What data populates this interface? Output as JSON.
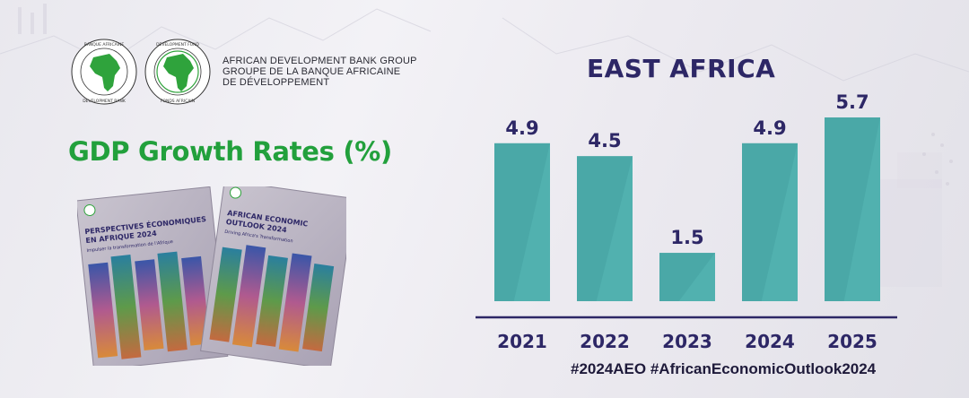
{
  "organization": {
    "emblem_left_ring": "BANQUE AFRICAINE DE DÉVELOPPEMENT • AFRICAN DEVELOPMENT BANK",
    "emblem_right_ring": "AFRICAN DEVELOPMENT FUND • FONDS AFRICAIN DE DÉVELOPPEMENT",
    "name_line1": "AFRICAN DEVELOPMENT BANK GROUP",
    "name_line2": "GROUPE DE LA BANQUE AFRICAINE",
    "name_line3": "DE DÉVELOPPEMENT"
  },
  "headline": "GDP Growth Rates (%)",
  "books": {
    "french": {
      "title1": "PERSPECTIVES ÉCONOMIQUES",
      "title2": "EN AFRIQUE 2024",
      "subtitle": "Impulser la transformation de l'Afrique"
    },
    "english": {
      "title1": "AFRICAN ECONOMIC",
      "title2": "OUTLOOK 2024",
      "subtitle": "Driving Africa's Transformation"
    }
  },
  "hashtags": "#2024AEO #AfricanEconomicOutlook2024",
  "colors": {
    "bar": "#4aa8a7",
    "bar_top": "#5cbcbb",
    "axis": "#2d2766",
    "label": "#2d2766",
    "headline": "#22a03c",
    "africa_green": "#2fa33c"
  },
  "chart_data": {
    "type": "bar",
    "title": "EAST AFRICA",
    "categories": [
      "2021",
      "2022",
      "2023",
      "2024",
      "2025"
    ],
    "values": [
      4.9,
      4.5,
      1.5,
      4.9,
      5.7
    ],
    "value_labels": [
      "4.9",
      "4.5",
      "1.5",
      "4.9",
      "5.7"
    ],
    "ylim": [
      0,
      5.7
    ],
    "grid": false,
    "legend": "none"
  }
}
